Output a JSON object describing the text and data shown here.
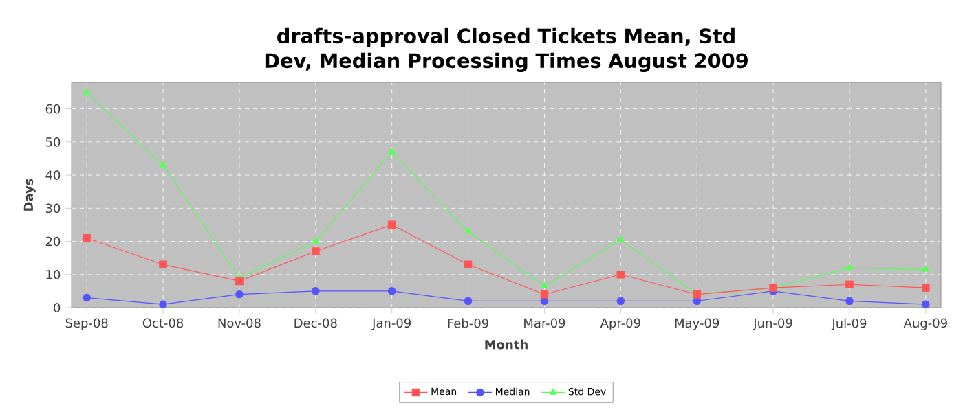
{
  "chart_data": {
    "type": "line",
    "title": "drafts-approval Closed Tickets Mean, Std Dev, Median Processing Times August 2009",
    "xlabel": "Month",
    "ylabel": "Days",
    "categories": [
      "Sep-08",
      "Oct-08",
      "Nov-08",
      "Dec-08",
      "Jan-09",
      "Feb-09",
      "Mar-09",
      "Apr-09",
      "May-09",
      "Jun-09",
      "Jul-09",
      "Aug-09"
    ],
    "series": [
      {
        "name": "Mean",
        "color": "#ff5555",
        "marker": "square",
        "values": [
          21,
          13,
          8,
          17,
          25,
          13,
          4,
          10,
          4,
          6,
          7,
          6
        ]
      },
      {
        "name": "Median",
        "color": "#5555ff",
        "marker": "circle",
        "values": [
          3,
          1,
          4,
          5,
          5,
          2,
          2,
          2,
          2,
          5,
          2,
          1
        ]
      },
      {
        "name": "Std Dev",
        "color": "#55ff55",
        "marker": "triangle",
        "values": [
          65,
          43,
          9,
          20,
          47,
          23,
          6.5,
          20.5,
          4,
          6,
          12,
          11.5
        ]
      }
    ],
    "ylim": [
      0,
      68
    ],
    "yticks": [
      0,
      10,
      20,
      30,
      40,
      50,
      60
    ],
    "grid": true,
    "legend": "bottom"
  }
}
